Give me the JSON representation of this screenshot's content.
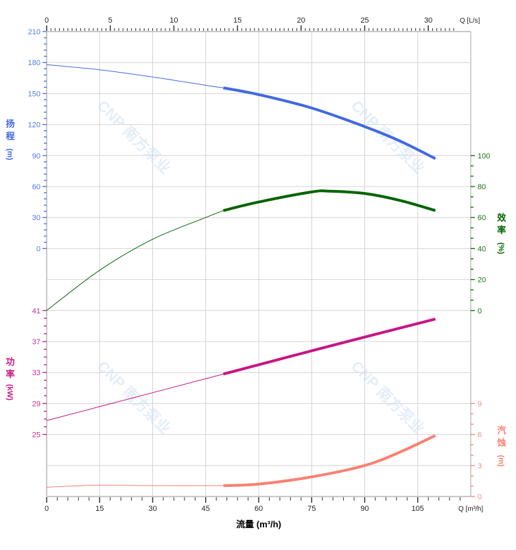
{
  "chart_data": {
    "type": "line",
    "x_axis_bottom": {
      "label": "流量 (m³/h)",
      "unit_label": "Q [m³/h]",
      "range": [
        0,
        120
      ],
      "ticks": [
        0,
        15,
        30,
        45,
        60,
        75,
        90,
        105
      ]
    },
    "x_axis_top": {
      "unit_label": "Q [L/s]",
      "range": [
        0,
        33.333
      ],
      "ticks": [
        0,
        5,
        10,
        15,
        20,
        25,
        30
      ]
    },
    "axes": {
      "head": {
        "label_chars": [
          "扬",
          "程",
          "(m)"
        ],
        "ticks": [
          210,
          180,
          150,
          120,
          90,
          60,
          30,
          0
        ],
        "color": "#4169e1",
        "side": "left"
      },
      "power": {
        "label_chars": [
          "功",
          "率",
          "(kW)"
        ],
        "ticks": [
          41,
          37,
          33,
          29,
          25
        ],
        "color": "#c71585",
        "side": "left"
      },
      "efficiency": {
        "label_chars": [
          "效",
          "率",
          "(%)"
        ],
        "ticks": [
          100,
          80,
          60,
          40,
          20,
          0
        ],
        "color": "#006400",
        "side": "right"
      },
      "npsh": {
        "label_chars": [
          "汽",
          "蚀",
          "(m)"
        ],
        "ticks": [
          9,
          6,
          3,
          0
        ],
        "color": "#fa8072",
        "side": "right"
      }
    },
    "grid": true,
    "operating_range": [
      50,
      110
    ],
    "series": [
      {
        "key": "head",
        "color": "#4169e1",
        "x": [
          0,
          15,
          30,
          45,
          50,
          60,
          75,
          90,
          100,
          110
        ],
        "y": [
          178,
          173,
          166,
          158,
          155.5,
          149,
          136,
          118,
          104,
          87
        ]
      },
      {
        "key": "efficiency",
        "color": "#006400",
        "x": [
          0,
          15,
          30,
          45,
          50,
          60,
          75,
          80,
          90,
          100,
          110
        ],
        "y": [
          0,
          26,
          46,
          60,
          64.5,
          70,
          76.5,
          77,
          75.5,
          71,
          64.5
        ]
      },
      {
        "key": "power",
        "color": "#c71585",
        "x": [
          0,
          25,
          50,
          80,
          110
        ],
        "y": [
          26.8,
          29.8,
          32.8,
          36.4,
          39.9
        ]
      },
      {
        "key": "npsh",
        "color": "#fa8072",
        "x": [
          0,
          15,
          30,
          50,
          60,
          75,
          90,
          100,
          110
        ],
        "y": [
          0.9,
          1.1,
          1.05,
          1.05,
          1.2,
          1.9,
          3.0,
          4.3,
          5.9
        ]
      }
    ],
    "watermark": "CNP 南方泵业"
  }
}
